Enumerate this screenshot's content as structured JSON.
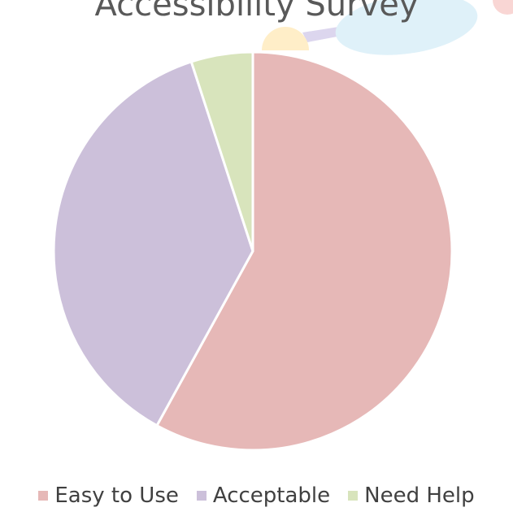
{
  "chart_data": {
    "type": "pie",
    "title": "Accessibility Survey",
    "categories": [
      "Easy to Use",
      "Acceptable",
      "Need Help"
    ],
    "values": [
      58,
      37,
      5
    ],
    "colors": [
      "#e6b8b7",
      "#ccc0da",
      "#d8e4bc"
    ],
    "legend_position": "bottom"
  },
  "decoration_colors": {
    "sun": "#ffeec8",
    "cloud": "#dff1f9",
    "beam": "#dcd6ee",
    "corner": "#f9d6d4"
  }
}
